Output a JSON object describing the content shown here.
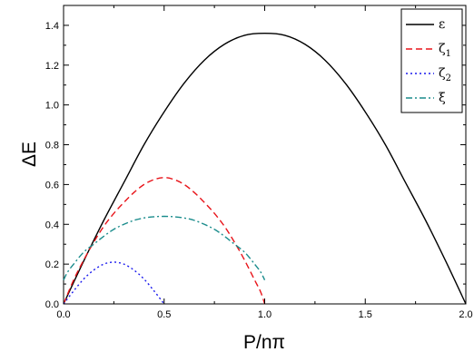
{
  "chart_data": {
    "type": "line",
    "title": "",
    "xlabel": "P/nπ",
    "ylabel": "ΔE",
    "xlim": [
      0.0,
      2.0
    ],
    "ylim": [
      0.0,
      1.5
    ],
    "xticks": [
      "0.0",
      "0.5",
      "1.0",
      "1.5",
      "2.0"
    ],
    "yticks": [
      "0.0",
      "0.2",
      "0.4",
      "0.6",
      "0.8",
      "1.0",
      "1.2",
      "1.4"
    ],
    "grid": false,
    "legend_position": "top-right",
    "series": [
      {
        "name": "ε",
        "legend_base": "ε",
        "legend_sub": "",
        "color": "#000000",
        "dash": "solid",
        "x": [
          0.0,
          0.1,
          0.2,
          0.3,
          0.4,
          0.5,
          0.6,
          0.7,
          0.8,
          0.9,
          1.0,
          1.1,
          1.2,
          1.3,
          1.4,
          1.5,
          1.6,
          1.7,
          1.8,
          1.9,
          2.0
        ],
        "y": [
          0.0,
          0.215,
          0.42,
          0.61,
          0.8,
          0.965,
          1.11,
          1.225,
          1.305,
          1.35,
          1.36,
          1.35,
          1.305,
          1.225,
          1.11,
          0.965,
          0.8,
          0.61,
          0.42,
          0.215,
          0.0
        ]
      },
      {
        "name": "ζ1",
        "legend_base": "ζ",
        "legend_sub": "1",
        "color": "#e8141a",
        "dash": "dashed",
        "x": [
          0.0,
          0.05,
          0.1,
          0.15,
          0.2,
          0.25,
          0.3,
          0.35,
          0.4,
          0.45,
          0.5,
          0.55,
          0.6,
          0.65,
          0.7,
          0.75,
          0.8,
          0.85,
          0.9,
          0.95,
          0.98,
          1.0
        ],
        "y": [
          0.0,
          0.12,
          0.22,
          0.31,
          0.39,
          0.455,
          0.51,
          0.56,
          0.6,
          0.625,
          0.635,
          0.625,
          0.6,
          0.56,
          0.51,
          0.455,
          0.39,
          0.31,
          0.22,
          0.12,
          0.06,
          0.0
        ]
      },
      {
        "name": "ζ2",
        "legend_base": "ζ",
        "legend_sub": "2",
        "color": "#1a1aee",
        "dash": "dotted",
        "x": [
          0.0,
          0.05,
          0.1,
          0.15,
          0.2,
          0.25,
          0.3,
          0.35,
          0.4,
          0.45,
          0.5
        ],
        "y": [
          0.0,
          0.065,
          0.125,
          0.17,
          0.2,
          0.21,
          0.2,
          0.17,
          0.125,
          0.065,
          0.0
        ]
      },
      {
        "name": "ξ",
        "legend_base": "ξ",
        "legend_sub": "",
        "color": "#1a8c8c",
        "dash": "dashdot",
        "x": [
          0.0,
          0.02,
          0.05,
          0.1,
          0.15,
          0.2,
          0.25,
          0.3,
          0.35,
          0.4,
          0.45,
          0.5,
          0.55,
          0.6,
          0.65,
          0.7,
          0.75,
          0.8,
          0.85,
          0.9,
          0.95,
          0.98,
          1.0
        ],
        "y": [
          0.12,
          0.16,
          0.2,
          0.26,
          0.3,
          0.34,
          0.375,
          0.4,
          0.42,
          0.432,
          0.438,
          0.44,
          0.438,
          0.432,
          0.42,
          0.4,
          0.375,
          0.34,
          0.3,
          0.26,
          0.2,
          0.16,
          0.12
        ]
      }
    ]
  }
}
